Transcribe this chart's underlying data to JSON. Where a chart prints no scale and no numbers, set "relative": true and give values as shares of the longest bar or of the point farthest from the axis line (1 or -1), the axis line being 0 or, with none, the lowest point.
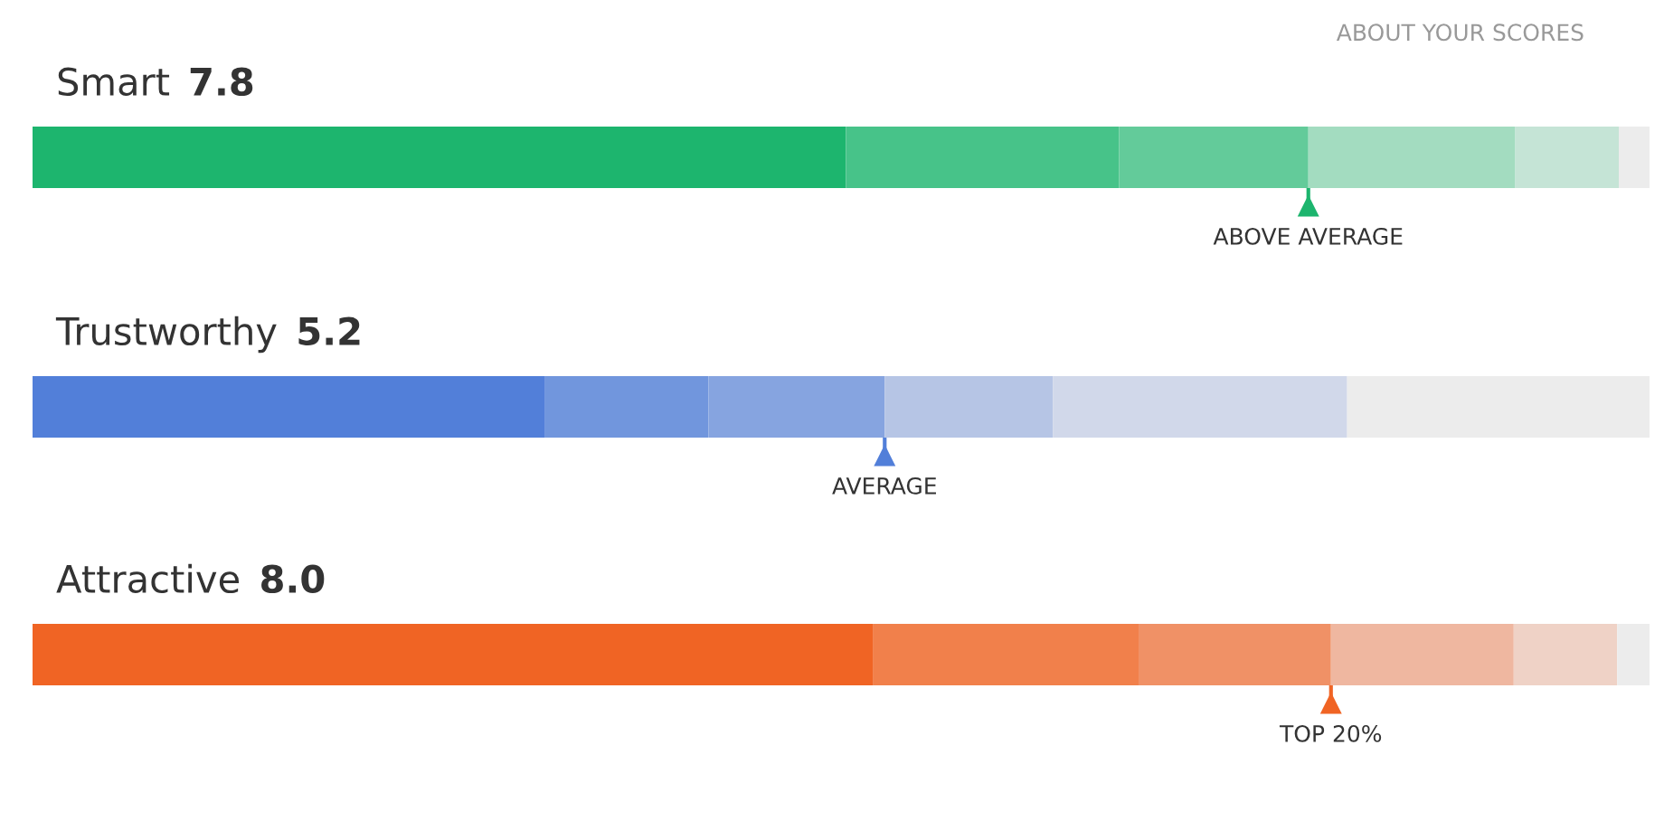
{
  "chart_data": [
    {
      "type": "bar",
      "orientation": "horizontal",
      "stacked": true,
      "relative": true,
      "title": "Smart",
      "subtitle": "7.8",
      "categories": [
        null
      ],
      "annotations": [
        "ABOUT YOUR SCORES"
      ],
      "ref_lines": [
        {
          "axis": "x",
          "value": 0.789,
          "label": "ABOVE AVERAGE",
          "color": "#1db56e"
        }
      ],
      "series": [
        {
          "color": "#1db56e",
          "values": [
            0.503
          ]
        },
        {
          "color": "#47c389",
          "values": [
            0.169
          ]
        },
        {
          "color": "#63cb9a",
          "values": [
            0.117
          ]
        },
        {
          "color": "#a3dcc0",
          "values": [
            0.128
          ]
        },
        {
          "color": "#c5e4d6",
          "values": [
            0.064
          ]
        },
        {
          "color": "#ececec",
          "values": [
            0.019
          ]
        }
      ]
    },
    {
      "type": "bar",
      "orientation": "horizontal",
      "stacked": true,
      "relative": true,
      "title": "Trustworthy",
      "subtitle": "5.2",
      "categories": [
        null
      ],
      "ref_lines": [
        {
          "axis": "x",
          "value": 0.527,
          "label": "AVERAGE",
          "color": "#527fd9"
        }
      ],
      "series": [
        {
          "color": "#527fd9",
          "values": [
            0.317
          ]
        },
        {
          "color": "#7196dd",
          "values": [
            0.101
          ]
        },
        {
          "color": "#86a4e0",
          "values": [
            0.109
          ]
        },
        {
          "color": "#b6c5e5",
          "values": [
            0.104
          ]
        },
        {
          "color": "#d1d8ea",
          "values": [
            0.182
          ]
        },
        {
          "color": "#ececec",
          "values": [
            0.187
          ]
        }
      ]
    },
    {
      "type": "bar",
      "orientation": "horizontal",
      "stacked": true,
      "relative": true,
      "title": "Attractive",
      "subtitle": "8.0",
      "categories": [
        null
      ],
      "ref_lines": [
        {
          "axis": "x",
          "value": 0.803,
          "label": "TOP 20%",
          "color": "#f06424"
        }
      ],
      "series": [
        {
          "color": "#f06424",
          "values": [
            0.52
          ]
        },
        {
          "color": "#f1804b",
          "values": [
            0.164
          ]
        },
        {
          "color": "#f09166",
          "values": [
            0.119
          ]
        },
        {
          "color": "#efb7a0",
          "values": [
            0.113
          ]
        },
        {
          "color": "#efd2c6",
          "values": [
            0.064
          ]
        },
        {
          "color": "#ececec",
          "values": [
            0.02
          ]
        }
      ]
    }
  ]
}
